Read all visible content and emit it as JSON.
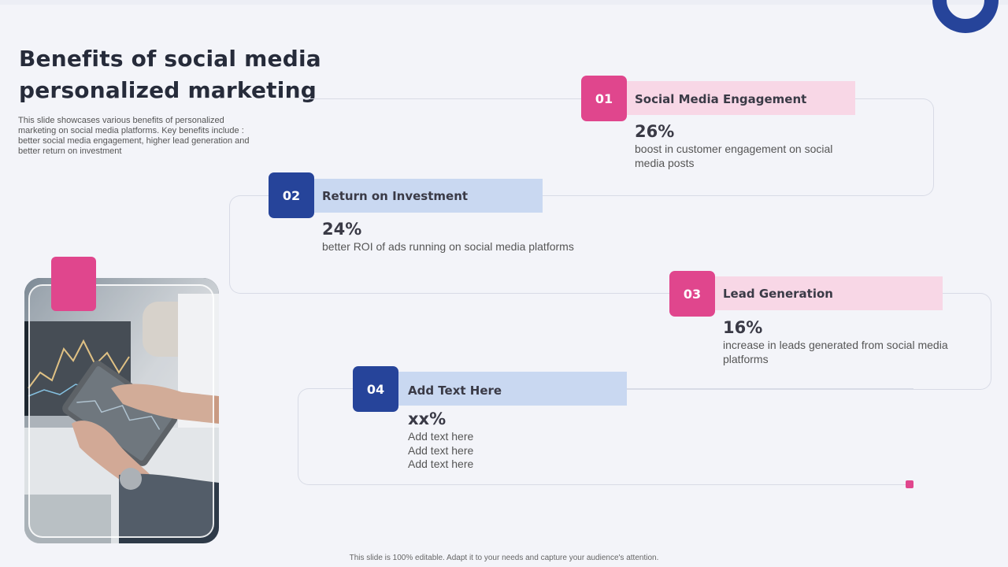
{
  "slide": {
    "title": "Benefits of social media personalized marketing",
    "description": "This slide showcases various benefits of personalized marketing on social media platforms. Key benefits include : better social media engagement, higher lead generation and better return on investment",
    "footer": "This slide is 100% editable. Adapt it to your needs and capture your audience's attention."
  },
  "benefits": [
    {
      "number": "01",
      "title": "Social Media Engagement",
      "percent": "26%",
      "text": "boost in customer engagement on social media posts"
    },
    {
      "number": "02",
      "title": "Return on Investment",
      "percent": "24%",
      "text": "better ROI of ads running on social media platforms"
    },
    {
      "number": "03",
      "title": "Lead Generation",
      "percent": "16%",
      "text": "increase in leads generated from social media platforms"
    },
    {
      "number": "04",
      "title": "Add Text Here",
      "percent": "xx%",
      "lines": [
        "Add text here",
        "Add text here",
        "Add text here"
      ]
    }
  ],
  "colors": {
    "pink": "#e0468d",
    "blue": "#26449a",
    "pink_band": "#f8d7e6",
    "blue_band": "#c9d8f1",
    "background": "#f3f4f9"
  },
  "image": {
    "icon": "tablet-stock-chart-photo"
  }
}
